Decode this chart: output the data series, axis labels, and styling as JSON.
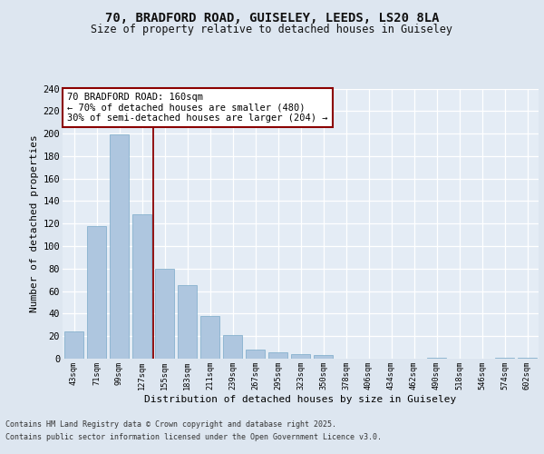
{
  "title1": "70, BRADFORD ROAD, GUISELEY, LEEDS, LS20 8LA",
  "title2": "Size of property relative to detached houses in Guiseley",
  "xlabel": "Distribution of detached houses by size in Guiseley",
  "ylabel": "Number of detached properties",
  "categories": [
    "43sqm",
    "71sqm",
    "99sqm",
    "127sqm",
    "155sqm",
    "183sqm",
    "211sqm",
    "239sqm",
    "267sqm",
    "295sqm",
    "323sqm",
    "350sqm",
    "378sqm",
    "406sqm",
    "434sqm",
    "462sqm",
    "490sqm",
    "518sqm",
    "546sqm",
    "574sqm",
    "602sqm"
  ],
  "values": [
    24,
    118,
    199,
    128,
    80,
    65,
    38,
    21,
    8,
    6,
    4,
    3,
    0,
    0,
    0,
    0,
    1,
    0,
    0,
    1,
    1
  ],
  "bar_color": "#aec6df",
  "bar_edge_color": "#7aaac8",
  "reference_line_label": "70 BRADFORD ROAD: 160sqm",
  "annotation_line1": "← 70% of detached houses are smaller (480)",
  "annotation_line2": "30% of semi-detached houses are larger (204) →",
  "ylim": [
    0,
    240
  ],
  "yticks": [
    0,
    20,
    40,
    60,
    80,
    100,
    120,
    140,
    160,
    180,
    200,
    220,
    240
  ],
  "footer1": "Contains HM Land Registry data © Crown copyright and database right 2025.",
  "footer2": "Contains public sector information licensed under the Open Government Licence v3.0.",
  "bg_color": "#dde6f0",
  "plot_bg_color": "#e4ecf5"
}
